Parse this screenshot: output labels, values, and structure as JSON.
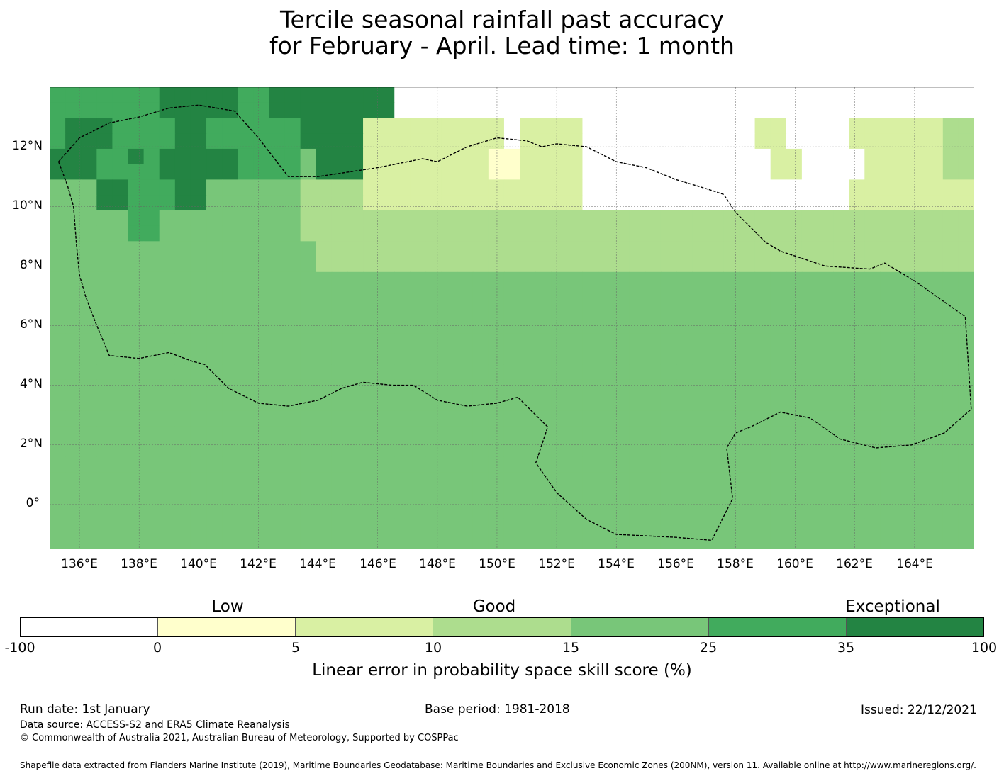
{
  "title": {
    "line1": "Tercile seasonal rainfall past accuracy",
    "line2": "for February - April. Lead time: 1 month"
  },
  "map": {
    "lon_range": [
      135,
      166
    ],
    "lat_range": [
      -1.5,
      14
    ],
    "cell_size_deg": 0.833,
    "lat_labels": [
      "12°N",
      "10°N",
      "8°N",
      "6°N",
      "4°N",
      "2°N",
      "0°"
    ],
    "lon_labels": [
      "136°E",
      "138°E",
      "140°E",
      "142°E",
      "144°E",
      "146°E",
      "148°E",
      "150°E",
      "152°E",
      "154°E",
      "156°E",
      "158°E",
      "160°E",
      "162°E",
      "164°E"
    ],
    "eez_boundary": [
      [
        135.3,
        11.5
      ],
      [
        136.0,
        12.3
      ],
      [
        137.0,
        12.8
      ],
      [
        138.0,
        13.0
      ],
      [
        139.0,
        13.3
      ],
      [
        140.0,
        13.4
      ],
      [
        141.2,
        13.2
      ],
      [
        142.0,
        12.3
      ],
      [
        143.0,
        11.0
      ],
      [
        144.0,
        11.0
      ],
      [
        146.0,
        11.3
      ],
      [
        147.5,
        11.6
      ],
      [
        148.0,
        11.5
      ],
      [
        149.0,
        12.0
      ],
      [
        150.0,
        12.3
      ],
      [
        151.0,
        12.2
      ],
      [
        151.5,
        12.0
      ],
      [
        152.0,
        12.1
      ],
      [
        153.0,
        12.0
      ],
      [
        154.0,
        11.5
      ],
      [
        155.0,
        11.3
      ],
      [
        156.0,
        10.9
      ],
      [
        157.0,
        10.6
      ],
      [
        157.6,
        10.4
      ],
      [
        158.0,
        9.8
      ],
      [
        159.0,
        8.8
      ],
      [
        159.5,
        8.5
      ],
      [
        161.0,
        8.0
      ],
      [
        162.5,
        7.9
      ],
      [
        163.0,
        8.1
      ],
      [
        164.0,
        7.5
      ],
      [
        165.7,
        6.3
      ],
      [
        165.9,
        3.2
      ],
      [
        165.0,
        2.4
      ],
      [
        163.9,
        2.0
      ],
      [
        162.7,
        1.9
      ],
      [
        161.5,
        2.2
      ],
      [
        160.5,
        2.9
      ],
      [
        159.5,
        3.1
      ],
      [
        158.5,
        2.6
      ],
      [
        158.0,
        2.4
      ],
      [
        157.7,
        1.9
      ],
      [
        157.9,
        0.2
      ],
      [
        157.2,
        -1.2
      ],
      [
        156.0,
        -1.1
      ],
      [
        154.0,
        -1.0
      ],
      [
        153.0,
        -0.5
      ],
      [
        152.0,
        0.4
      ],
      [
        151.3,
        1.4
      ],
      [
        151.7,
        2.6
      ],
      [
        151.2,
        3.1
      ],
      [
        150.7,
        3.6
      ],
      [
        150.0,
        3.4
      ],
      [
        149.0,
        3.3
      ],
      [
        148.0,
        3.5
      ],
      [
        147.2,
        4.0
      ],
      [
        146.5,
        4.0
      ],
      [
        145.5,
        4.1
      ],
      [
        144.8,
        3.9
      ],
      [
        144.0,
        3.5
      ],
      [
        143.0,
        3.3
      ],
      [
        142.0,
        3.4
      ],
      [
        141.0,
        3.9
      ],
      [
        140.2,
        4.7
      ],
      [
        139.8,
        4.8
      ],
      [
        139.0,
        5.1
      ],
      [
        138.0,
        4.9
      ],
      [
        137.0,
        5.0
      ],
      [
        136.5,
        6.2
      ],
      [
        136.2,
        7.0
      ],
      [
        136.0,
        7.7
      ],
      [
        135.9,
        8.7
      ],
      [
        135.8,
        10.0
      ],
      [
        135.6,
        10.7
      ],
      [
        135.3,
        11.5
      ]
    ],
    "grid": [
      "55555556666655666666660000000000000000000000000000000000000",
      "55555556666655666666660000000000000000000000000000000000000",
      "56665555665555556666222222222022220000000000022000022222233",
      "56665555665555556666222222222022220000000000022000022222233",
      "66655656666655554666222222221122220000000000002200002222233",
      "66655556666655554666222222221122220000000000002200002222233",
      "44466555664444443333222222222222220000000000000000022222222",
      "44466555664444443333222222222222220000000000000000022222222",
      "44444554444444443333333333333333333333333333333333333333333",
      "44444554444444443333333333333333333333333333333333333333333",
      "44444444444444444333333333333333333333333333333333333333333",
      "44444444444444444333333333333333333333333333333333333333333",
      "44444444444444444444444444444444444444444444444444444444444",
      "44444444444444444444444444444444444444444444444444444444444",
      "44444444444444444444444444444444444444444444444444444444444",
      "44444444444444444444444444444444444444444444444444444444444",
      "44444444444444444444444444444444444444444444444444444444444",
      "44444444444444444444444444444444444444444444444444444444444",
      "44444444444444444444444444444444444444444444444444444444444",
      "44444444444444444444444444444444444444444444444444444444444",
      "44444444444444444444444444444444444444444444444444444444444",
      "44444444444444444444444444444444444444444444444444444444444",
      "44444444444444444444444444444444444444444444444444444444444",
      "44444444444444444444444444444444444444444444444444444444444",
      "44444444444444444444444444444444444444444444444444444444444",
      "44444444444444444444444444444444444444444444444444444444444",
      "44444444444444444444444444444444444444444444444444444444444",
      "44444444444444444444444444444444444444444444444444444444444",
      "44444444444444444444444444444444444444444444444444444444444",
      "44444444444444444444444444444444444444444444444444444444444"
    ]
  },
  "colorbar": {
    "category_labels": {
      "low": "Low",
      "good": "Good",
      "exceptional": "Exceptional"
    },
    "colors": [
      "#ffffff",
      "#ffffcc",
      "#d9f0a3",
      "#addd8e",
      "#78c679",
      "#41ab5d",
      "#238443"
    ],
    "ticks": [
      "-100",
      "0",
      "5",
      "10",
      "15",
      "25",
      "35",
      "100"
    ],
    "label": "Linear error in probability space skill score (%)"
  },
  "footer": {
    "run_date": "Run date: 1st January",
    "base_period": "Base period: 1981-2018",
    "issued": "Issued: 22/12/2021",
    "data_source": "Data source: ACCESS-S2 and ERA5 Climate Reanalysis",
    "copyright": "© Commonwealth of Australia 2021, Australian Bureau of Meteorology, Supported by COSPPac",
    "shapefile_note": "Shapefile data extracted from Flanders Marine Institute (2019), Maritime Boundaries Geodatabase: Maritime Boundaries and Exclusive Economic Zones (200NM), version 11. Available online at http://www.marineregions.org/."
  }
}
